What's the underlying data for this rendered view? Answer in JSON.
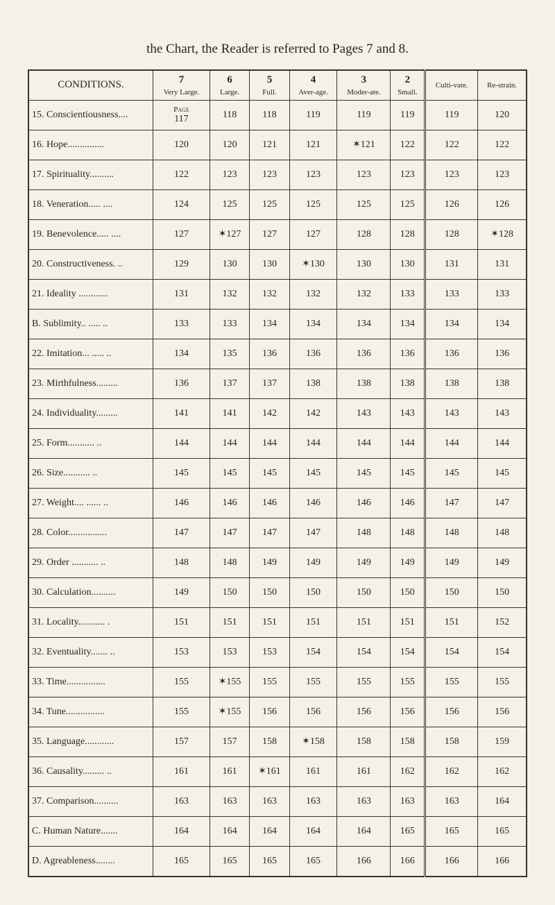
{
  "caption": "the Chart, the Reader is referred to Pages 7 and 8.",
  "headers": {
    "conditions": "CONDITIONS.",
    "cols": [
      {
        "num": "7",
        "sub": "Very Large."
      },
      {
        "num": "6",
        "sub": "Large."
      },
      {
        "num": "5",
        "sub": "Full."
      },
      {
        "num": "4",
        "sub": "Aver-age."
      },
      {
        "num": "3",
        "sub": "Moder-ate."
      },
      {
        "num": "2",
        "sub": "Small."
      },
      {
        "num": "",
        "sub": "Culti-vate."
      },
      {
        "num": "",
        "sub": "Re-strain."
      }
    ]
  },
  "page_note": "Page",
  "rows": [
    {
      "label": "15. Conscientiousness....",
      "vals": [
        "117",
        "118",
        "118",
        "119",
        "119",
        "119",
        "119",
        "120"
      ]
    },
    {
      "label": "16. Hope...............",
      "vals": [
        "120",
        "120",
        "121",
        "121",
        "✶121",
        "122",
        "122",
        "122"
      ]
    },
    {
      "label": "17. Spirituality..........",
      "vals": [
        "122",
        "123",
        "123",
        "123",
        "123",
        "123",
        "123",
        "123"
      ]
    },
    {
      "label": "18. Veneration..... ....",
      "vals": [
        "124",
        "125",
        "125",
        "125",
        "125",
        "125",
        "126",
        "126"
      ]
    },
    {
      "label": "19. Benevolence..... ....",
      "vals": [
        "127",
        "✶127",
        "127",
        "127",
        "128",
        "128",
        "128",
        "✶128"
      ]
    },
    {
      "label": "20. Constructiveness. ..",
      "vals": [
        "129",
        "130",
        "130",
        "✶130",
        "130",
        "130",
        "131",
        "131"
      ]
    },
    {
      "label": "21. Ideality ............",
      "vals": [
        "131",
        "132",
        "132",
        "132",
        "132",
        "133",
        "133",
        "133"
      ]
    },
    {
      "label": "B. Sublimity.. ..... ..",
      "vals": [
        "133",
        "133",
        "134",
        "134",
        "134",
        "134",
        "134",
        "134"
      ]
    },
    {
      "label": "22. Imitation... ..... ..",
      "vals": [
        "134",
        "135",
        "136",
        "136",
        "136",
        "136",
        "136",
        "136"
      ]
    },
    {
      "label": "23. Mirthfulness.........",
      "vals": [
        "136",
        "137",
        "137",
        "138",
        "138",
        "138",
        "138",
        "138"
      ]
    },
    {
      "label": "24. Individuality.........",
      "vals": [
        "141",
        "141",
        "142",
        "142",
        "143",
        "143",
        "143",
        "143"
      ]
    },
    {
      "label": "25. Form........... ..",
      "vals": [
        "144",
        "144",
        "144",
        "144",
        "144",
        "144",
        "144",
        "144"
      ]
    },
    {
      "label": "26. Size........... ..",
      "vals": [
        "145",
        "145",
        "145",
        "145",
        "145",
        "145",
        "145",
        "145"
      ]
    },
    {
      "label": "27. Weight.... ...... ..",
      "vals": [
        "146",
        "146",
        "146",
        "146",
        "146",
        "146",
        "147",
        "147"
      ]
    },
    {
      "label": "28. Color................",
      "vals": [
        "147",
        "147",
        "147",
        "147",
        "148",
        "148",
        "148",
        "148"
      ]
    },
    {
      "label": "29. Order ........... ..",
      "vals": [
        "148",
        "148",
        "149",
        "149",
        "149",
        "149",
        "149",
        "149"
      ]
    },
    {
      "label": "30. Calculation..........",
      "vals": [
        "149",
        "150",
        "150",
        "150",
        "150",
        "150",
        "150",
        "150"
      ]
    },
    {
      "label": "31. Locality........... .",
      "vals": [
        "151",
        "151",
        "151",
        "151",
        "151",
        "151",
        "151",
        "152"
      ]
    },
    {
      "label": "32. Eventuality....... ..",
      "vals": [
        "153",
        "153",
        "153",
        "154",
        "154",
        "154",
        "154",
        "154"
      ]
    },
    {
      "label": "33. Time................",
      "vals": [
        "155",
        "✶155",
        "155",
        "155",
        "155",
        "155",
        "155",
        "155"
      ]
    },
    {
      "label": "34. Tune................",
      "vals": [
        "155",
        "✶155",
        "156",
        "156",
        "156",
        "156",
        "156",
        "156"
      ]
    },
    {
      "label": "35. Language............",
      "vals": [
        "157",
        "157",
        "158",
        "✶158",
        "158",
        "158",
        "158",
        "159"
      ]
    },
    {
      "label": "36. Causality......... ..",
      "vals": [
        "161",
        "161",
        "✶161",
        "161",
        "161",
        "162",
        "162",
        "162"
      ]
    },
    {
      "label": "37. Comparison..........",
      "vals": [
        "163",
        "163",
        "163",
        "163",
        "163",
        "163",
        "163",
        "164"
      ]
    },
    {
      "label": "C. Human Nature.......",
      "vals": [
        "164",
        "164",
        "164",
        "164",
        "164",
        "165",
        "165",
        "165"
      ]
    },
    {
      "label": "D. Agreableness........",
      "vals": [
        "165",
        "165",
        "165",
        "165",
        "166",
        "166",
        "166",
        "166"
      ]
    }
  ]
}
